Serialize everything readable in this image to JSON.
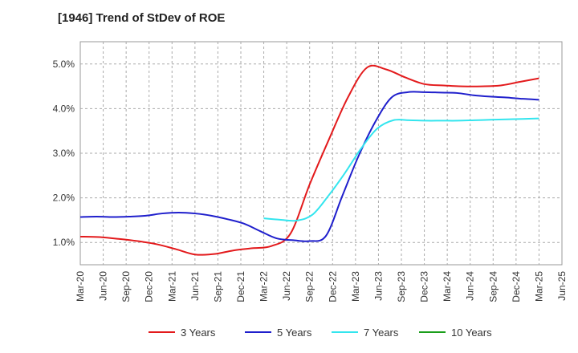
{
  "chart_data": {
    "type": "line",
    "title": "[1946]  Trend of StDev of ROE",
    "xlabel": "",
    "ylabel": "",
    "x_ticks": [
      "Mar-20",
      "Jun-20",
      "Sep-20",
      "Dec-20",
      "Mar-21",
      "Jun-21",
      "Sep-21",
      "Dec-21",
      "Mar-22",
      "Jun-22",
      "Sep-22",
      "Dec-22",
      "Mar-23",
      "Jun-23",
      "Sep-23",
      "Dec-23",
      "Mar-24",
      "Jun-24",
      "Sep-24",
      "Dec-24",
      "Mar-25",
      "Jun-25"
    ],
    "y_ticks": [
      "1.0%",
      "2.0%",
      "3.0%",
      "4.0%",
      "5.0%"
    ],
    "ylim": [
      0.5,
      5.5
    ],
    "grid": "dashed",
    "legend_position": "bottom",
    "series": [
      {
        "name": "3 Years",
        "color": "#e31a1c",
        "start_index": 0,
        "values": [
          1.13,
          1.12,
          1.08,
          1.03,
          0.96,
          0.85,
          0.73,
          0.74,
          0.82,
          0.87,
          0.92,
          1.2,
          2.3,
          3.3,
          4.25,
          4.92,
          4.88,
          4.7,
          4.55,
          4.52,
          4.5,
          4.5,
          4.52,
          4.6,
          4.68
        ]
      },
      {
        "name": "5 Years",
        "color": "#1f1fcc",
        "start_index": 0,
        "values": [
          1.57,
          1.58,
          1.57,
          1.58,
          1.6,
          1.65,
          1.67,
          1.65,
          1.6,
          1.52,
          1.42,
          1.25,
          1.09,
          1.05,
          1.03,
          1.15,
          2.05,
          2.95,
          3.7,
          4.25,
          4.37,
          4.37,
          4.36,
          4.35,
          4.3,
          4.27,
          4.25,
          4.22,
          4.2
        ]
      },
      {
        "name": "7 Years",
        "color": "#33e5ee",
        "start_index": 8,
        "values": [
          1.54,
          1.51,
          1.49,
          1.62,
          2.05,
          2.55,
          3.1,
          3.55,
          3.74,
          3.74,
          3.73,
          3.73,
          3.73,
          3.74,
          3.75,
          3.76,
          3.77,
          3.78
        ]
      },
      {
        "name": "10 Years",
        "color": "#1a9e1a",
        "start_index": 0,
        "values": []
      }
    ]
  }
}
